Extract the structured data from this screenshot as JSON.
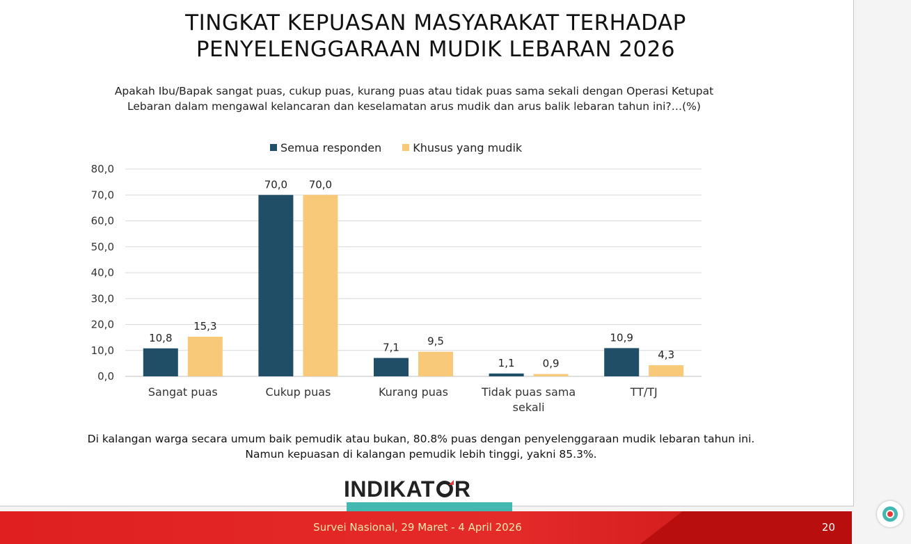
{
  "title_line1": "TINGKAT KEPUASAN MASYARAKAT TERHADAP",
  "title_line2": "PENYELENGGARAAN MUDIK LEBARAN 2026",
  "question_line1": "Apakah Ibu/Bapak sangat puas, cukup puas, kurang puas atau tidak puas sama sekali dengan Operasi Ketupat",
  "question_line2": "Lebaran dalam mengawal kelancaran dan keselamatan arus mudik dan arus balik lebaran tahun ini?…(%)",
  "footnote_line1": "Di kalangan warga secara umum baik pemudik atau bukan, 80.8% puas dengan penyelenggaraan mudik lebaran tahun ini.",
  "footnote_line2": "Namun kepuasan di kalangan pemudik lebih tinggi, yakni 85.3%.",
  "logo_text_left": "INDIKAT",
  "logo_text_right": "R",
  "footer_text": "Survei Nasional, 29 Maret - 4 April 2026",
  "page_number": "20",
  "colors": {
    "series1": "#1f4e66",
    "series2": "#f9c97a",
    "grid": "#d9d9d9",
    "footer_red": "#e02020",
    "teal": "#43b8b0"
  },
  "icons": {
    "corner": "indikator-logo-icon"
  },
  "chart_data": {
    "type": "bar",
    "categories": [
      [
        "Sangat puas"
      ],
      [
        "Cukup puas"
      ],
      [
        "Kurang puas"
      ],
      [
        "Tidak puas sama",
        "sekali"
      ],
      [
        "TT/TJ"
      ]
    ],
    "series": [
      {
        "name": "Semua responden",
        "values": [
          10.8,
          70.0,
          7.1,
          1.1,
          10.9
        ],
        "labels": [
          "10,8",
          "70,0",
          "7,1",
          "1,1",
          "10,9"
        ]
      },
      {
        "name": "Khusus yang mudik",
        "values": [
          15.3,
          70.0,
          9.5,
          0.9,
          4.3
        ],
        "labels": [
          "15,3",
          "70,0",
          "9,5",
          "0,9",
          "4,3"
        ]
      }
    ],
    "ylim": [
      0,
      80
    ],
    "yticks": [
      "0,0",
      "10,0",
      "20,0",
      "30,0",
      "40,0",
      "50,0",
      "60,0",
      "70,0",
      "80,0"
    ],
    "grid": true,
    "legend_position": "top"
  }
}
